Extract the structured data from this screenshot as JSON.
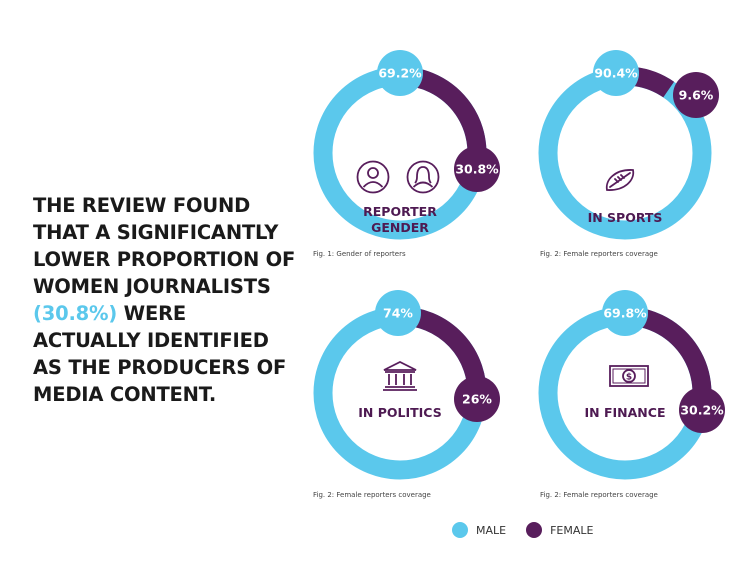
{
  "headline": {
    "before": "THE REVIEW FOUND THAT A SIGNIFICANTLY LOWER PROPORTION OF WOMEN JOURNALISTS ",
    "highlight": "(30.8%)",
    "after": " WERE ACTUALLY IDENTIFIED AS THE PRODUCERS OF MEDIA CONTENT."
  },
  "colors": {
    "male": "#5bc8ec",
    "female": "#581e5c",
    "highlight": "#5bc8ec"
  },
  "chart_data": [
    {
      "type": "pie",
      "variant": "donut",
      "title": "",
      "center_label": [
        "REPORTER",
        "GENDER"
      ],
      "icon": "male-female-icon",
      "caption": "Fig. 1: Gender of reporters",
      "slices": [
        {
          "name": "MALE",
          "value": 69.2,
          "label": "69.2%"
        },
        {
          "name": "FEMALE",
          "value": 30.8,
          "label": "30.8%"
        }
      ]
    },
    {
      "type": "pie",
      "variant": "donut",
      "title": "",
      "center_label": [
        "IN SPORTS"
      ],
      "icon": "football-icon",
      "caption": "Fig. 2: Female reporters coverage",
      "slices": [
        {
          "name": "MALE",
          "value": 90.4,
          "label": "90.4%"
        },
        {
          "name": "FEMALE",
          "value": 9.6,
          "label": "9.6%"
        }
      ]
    },
    {
      "type": "pie",
      "variant": "donut",
      "title": "",
      "center_label": [
        "IN POLITICS"
      ],
      "icon": "government-building-icon",
      "caption": "Fig. 2: Female reporters coverage",
      "slices": [
        {
          "name": "MALE",
          "value": 74,
          "label": "74%"
        },
        {
          "name": "FEMALE",
          "value": 26,
          "label": "26%"
        }
      ]
    },
    {
      "type": "pie",
      "variant": "donut",
      "title": "",
      "center_label": [
        "IN FINANCE"
      ],
      "icon": "banknote-icon",
      "caption": "Fig. 2: Female reporters coverage",
      "slices": [
        {
          "name": "MALE",
          "value": 69.8,
          "label": "69.8%"
        },
        {
          "name": "FEMALE",
          "value": 30.2,
          "label": "30.2%"
        }
      ]
    }
  ],
  "legend": [
    {
      "label": "MALE",
      "color": "#5bc8ec"
    },
    {
      "label": "FEMALE",
      "color": "#581e5c"
    }
  ]
}
